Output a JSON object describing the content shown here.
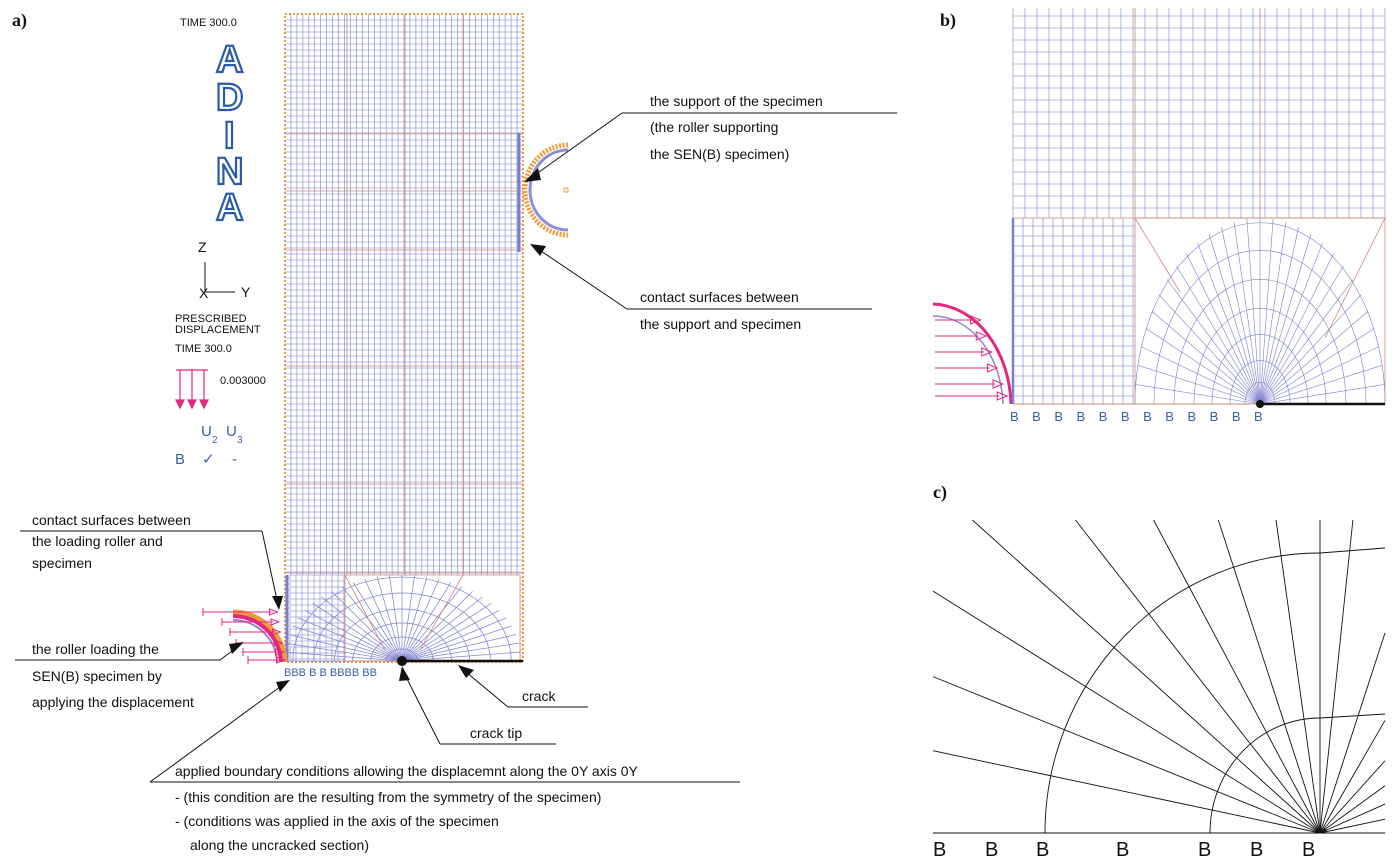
{
  "panels": {
    "a": "a)",
    "b": "b)",
    "c": "c)"
  },
  "adina": {
    "time_label": "TIME 300.0",
    "letters": [
      "A",
      "D",
      "I",
      "N",
      "A"
    ],
    "axis_z": "Z",
    "axis_y": "Y",
    "axis_x": "X",
    "prescribed_line1": "PRESCRIBED",
    "prescribed_line2": "DISPLACEMENT",
    "prescribed_time": "TIME 300.0",
    "displacement_value": "0.003000",
    "legend_u2": "U",
    "legend_u2_sub": "2",
    "legend_u3": "U",
    "legend_u3_sub": "3",
    "legend_b": "B",
    "legend_check": "✓",
    "legend_dash": "-"
  },
  "annotations": {
    "support": [
      "the support of the specimen",
      "(the roller supporting",
      "the SEN(B) specimen)"
    ],
    "contact_support": [
      "contact surfaces between",
      "the support and specimen"
    ],
    "contact_loading": [
      "contact surfaces between",
      "the loading roller and",
      "specimen"
    ],
    "loading_roller": [
      "the roller loading the",
      "SEN(B) specimen by",
      "applying the displacement"
    ],
    "crack": "crack",
    "crack_tip": "crack tip",
    "boundary": [
      "applied boundary conditions allowing the displacemnt along the 0Y axis 0Y",
      "- (this condition are the resulting from the symmetry of the specimen)",
      "- (conditions was applied in the axis of the specimen",
      "along the uncracked section)"
    ]
  },
  "boundary_marks": {
    "panel_a": "BBB B B BBBB BB",
    "panel_b": [
      "B",
      "B",
      "B",
      "B",
      "B",
      "B",
      "B",
      "B",
      "B",
      "B",
      "B",
      "B"
    ],
    "panel_c": [
      "B",
      "B",
      "B",
      "B",
      "B",
      "B",
      "B"
    ]
  },
  "colors": {
    "mesh": "#7c7fcf",
    "node": "#c98a7a",
    "orange": "#f39a3c",
    "magenta": "#e0287f",
    "blue_text": "#2a5aa8",
    "dark": "#111111"
  }
}
